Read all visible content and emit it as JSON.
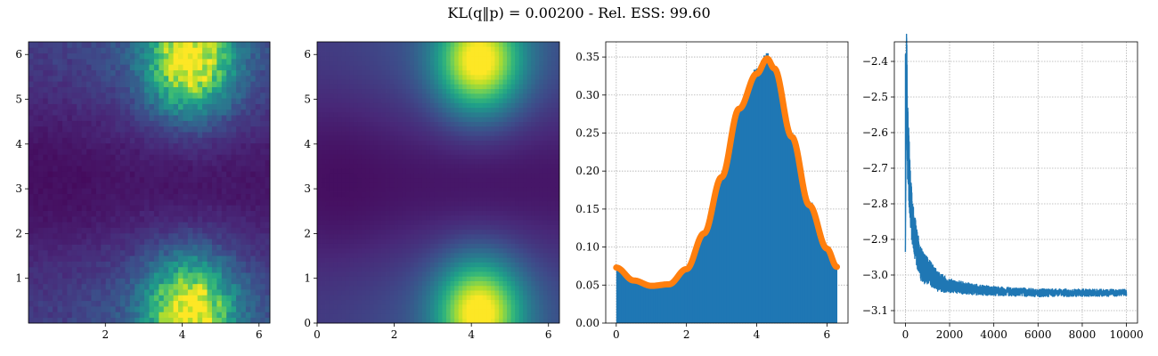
{
  "figure": {
    "title": "KL(q‖p) = 0.00200 - Rel. ESS: 99.60"
  },
  "chart_data": [
    {
      "type": "heatmap",
      "colormap": "viridis",
      "xlim": [
        0,
        6.283
      ],
      "ylim": [
        0,
        6.283
      ],
      "x_ticks": [
        "2",
        "4",
        "6"
      ],
      "y_ticks": [
        "1",
        "2",
        "3",
        "4",
        "5",
        "6"
      ],
      "grid": false,
      "density_model": "normalized histogram of samples, ≈50×50 bins; low density band around y≈π, bright blobs centered near (4.2, 5.8) and (4.2, 0.2)"
    },
    {
      "type": "heatmap",
      "colormap": "viridis",
      "xlim": [
        0,
        6.283
      ],
      "ylim": [
        0,
        6.283
      ],
      "x_ticks": [
        "0",
        "2",
        "4",
        "6"
      ],
      "y_ticks": [
        "0",
        "1",
        "2",
        "3",
        "4",
        "5",
        "6"
      ],
      "grid": false,
      "density_model": "smooth target density; bright blobs near (4.2, 5.8) and (4.2, 0.2), darkest region around (0.5, 3.2)"
    },
    {
      "type": "bar",
      "subtype": "histogram_with_density_curve",
      "xlim": [
        -0.3,
        6.6
      ],
      "ylim": [
        0,
        0.37
      ],
      "x_ticks": [
        "0",
        "2",
        "4",
        "6"
      ],
      "y_ticks": [
        "0.00",
        "0.05",
        "0.10",
        "0.15",
        "0.20",
        "0.25",
        "0.30",
        "0.35"
      ],
      "grid": true,
      "series": [
        {
          "kind": "histogram",
          "color": "#1f77b4",
          "x": [
            0.0,
            0.5,
            1.0,
            1.5,
            2.0,
            2.5,
            3.0,
            3.5,
            4.0,
            4.3,
            4.5,
            5.0,
            5.5,
            6.0,
            6.28
          ],
          "y": [
            0.072,
            0.055,
            0.048,
            0.05,
            0.07,
            0.12,
            0.19,
            0.28,
            0.335,
            0.355,
            0.33,
            0.25,
            0.16,
            0.1,
            0.074
          ]
        },
        {
          "kind": "density-curve",
          "color": "#ff7f0e",
          "x": [
            0.0,
            0.5,
            1.0,
            1.5,
            2.0,
            2.5,
            3.0,
            3.5,
            4.0,
            4.3,
            4.5,
            5.0,
            5.5,
            6.0,
            6.28
          ],
          "y": [
            0.073,
            0.056,
            0.049,
            0.051,
            0.071,
            0.118,
            0.192,
            0.282,
            0.328,
            0.348,
            0.335,
            0.245,
            0.155,
            0.098,
            0.074
          ]
        }
      ]
    },
    {
      "type": "line",
      "xlim": [
        -500,
        10500
      ],
      "ylim": [
        -3.135,
        -2.345
      ],
      "x_ticks": [
        "0",
        "2000",
        "4000",
        "6000",
        "8000",
        "10000"
      ],
      "y_ticks": [
        "−2.4",
        "−2.5",
        "−2.6",
        "−2.7",
        "−2.8",
        "−2.9",
        "−3.0",
        "−3.1"
      ],
      "grid": true,
      "series": [
        {
          "kind": "loss",
          "color": "#1f77b4",
          "x": [
            0,
            50,
            100,
            200,
            300,
            500,
            700,
            1000,
            1500,
            2000,
            3000,
            4000,
            6000,
            8000,
            10000
          ],
          "y": [
            -2.92,
            -2.38,
            -2.62,
            -2.75,
            -2.85,
            -2.92,
            -2.97,
            -2.99,
            -3.02,
            -3.03,
            -3.04,
            -3.045,
            -3.05,
            -3.05,
            -3.05
          ],
          "noise": [
            0.03,
            0.12,
            0.15,
            0.11,
            0.09,
            0.07,
            0.06,
            0.05,
            0.035,
            0.025,
            0.02,
            0.016,
            0.014,
            0.013,
            0.012
          ]
        }
      ]
    }
  ]
}
